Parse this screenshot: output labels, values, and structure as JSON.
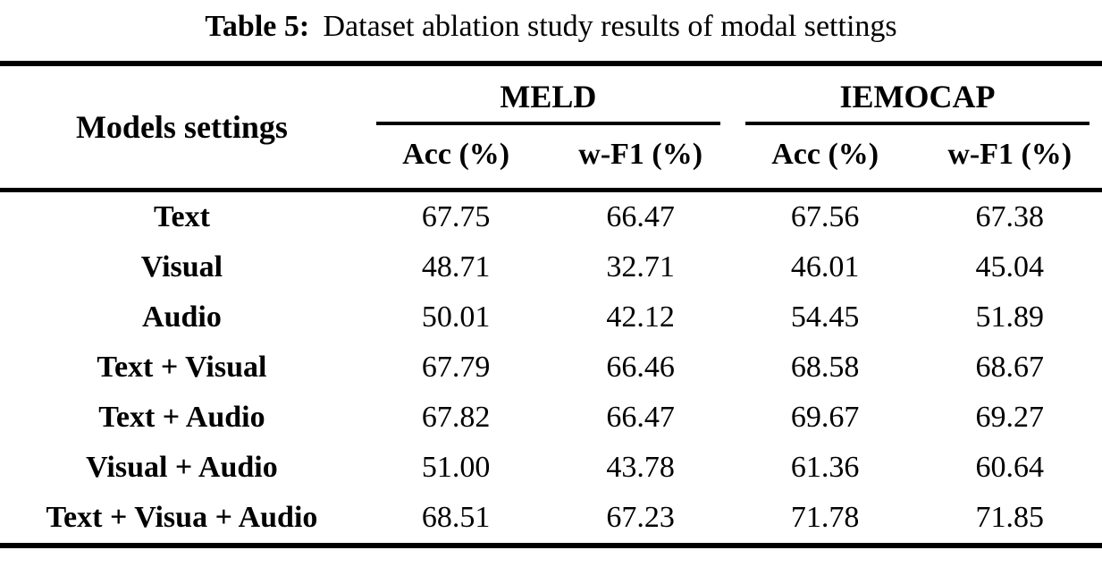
{
  "caption": {
    "label": "Table 5:",
    "text": "Dataset ablation study results of modal settings"
  },
  "table": {
    "row_header": "Models settings",
    "groups": [
      {
        "name": "MELD",
        "columns": [
          "Acc (%)",
          "w-F1 (%)"
        ]
      },
      {
        "name": "IEMOCAP",
        "columns": [
          "Acc (%)",
          "w-F1 (%)"
        ]
      }
    ],
    "rows": [
      {
        "setting": "Text",
        "values": [
          "67.75",
          "66.47",
          "67.56",
          "67.38"
        ]
      },
      {
        "setting": "Visual",
        "values": [
          "48.71",
          "32.71",
          "46.01",
          "45.04"
        ]
      },
      {
        "setting": "Audio",
        "values": [
          "50.01",
          "42.12",
          "54.45",
          "51.89"
        ]
      },
      {
        "setting": "Text + Visual",
        "values": [
          "67.79",
          "66.46",
          "68.58",
          "68.67"
        ]
      },
      {
        "setting": "Text + Audio",
        "values": [
          "67.82",
          "66.47",
          "69.67",
          "69.27"
        ]
      },
      {
        "setting": "Visual + Audio",
        "values": [
          "51.00",
          "43.78",
          "61.36",
          "60.64"
        ]
      },
      {
        "setting": "Text + Visua + Audio",
        "values": [
          "68.51",
          "67.23",
          "71.78",
          "71.85"
        ]
      }
    ]
  },
  "colors": {
    "text": "#000000",
    "background": "#ffffff",
    "rule": "#000000"
  }
}
